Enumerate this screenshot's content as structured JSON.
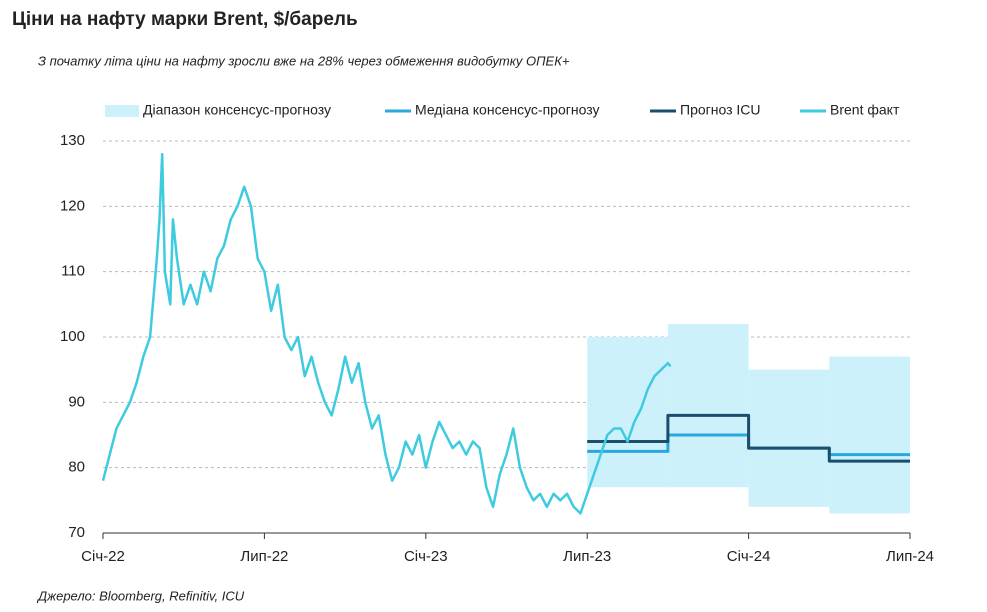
{
  "chart_data": {
    "type": "line",
    "title": "Ціни на нафту марки Brent, $/барель",
    "subtitle": "З початку літа ціни на нафту зросли вже на 28% через обмеження видобутку ОПЕК+",
    "source": "Джерело: Bloomberg, Refinitiv, ICU",
    "xlim": [
      0,
      30
    ],
    "xticks": [
      {
        "value": 0,
        "label": "Січ-22"
      },
      {
        "value": 6,
        "label": "Лип-22"
      },
      {
        "value": 12,
        "label": "Січ-23"
      },
      {
        "value": 18,
        "label": "Лип-23"
      },
      {
        "value": 24,
        "label": "Січ-24"
      },
      {
        "value": 30,
        "label": "Лип-24"
      }
    ],
    "ylim": [
      70,
      130
    ],
    "yticks": [
      70,
      80,
      90,
      100,
      110,
      120,
      130
    ],
    "grid": true,
    "legend": "top",
    "series": [
      {
        "name": "Діапазон консенсус-прогнозу",
        "kind": "range",
        "color": "#cdf1fb",
        "x": [
          18,
          21,
          21,
          24,
          24,
          27,
          27,
          30
        ],
        "values": [
          100,
          100,
          102,
          102,
          95,
          95,
          97,
          97
        ],
        "lower": [
          77,
          77,
          77,
          77,
          74,
          74,
          73,
          73
        ]
      },
      {
        "name": "Медіана консенсус-прогнозу",
        "color": "#29a8e0",
        "x": [
          18,
          21,
          21,
          24,
          24,
          27,
          27,
          30
        ],
        "values": [
          82.5,
          82.5,
          85,
          85,
          83,
          83,
          82,
          82
        ]
      },
      {
        "name": "Прогноз ICU",
        "color": "#1a4e6e",
        "x": [
          18,
          21,
          21,
          24,
          24,
          27,
          27,
          30
        ],
        "values": [
          84,
          84,
          88,
          88,
          83,
          83,
          81,
          81
        ]
      },
      {
        "name": "Brent факт",
        "color": "#3ecbe0",
        "x": [
          0,
          0.25,
          0.5,
          0.75,
          1,
          1.25,
          1.5,
          1.75,
          2,
          2.1,
          2.2,
          2.3,
          2.5,
          2.6,
          2.75,
          3,
          3.25,
          3.5,
          3.75,
          4,
          4.25,
          4.5,
          4.75,
          5,
          5.25,
          5.5,
          5.75,
          6,
          6.25,
          6.5,
          6.75,
          7,
          7.25,
          7.5,
          7.75,
          8,
          8.25,
          8.5,
          8.75,
          9,
          9.25,
          9.5,
          9.75,
          10,
          10.25,
          10.5,
          10.75,
          11,
          11.25,
          11.5,
          11.75,
          12,
          12.25,
          12.5,
          12.75,
          13,
          13.25,
          13.5,
          13.75,
          14,
          14.25,
          14.5,
          14.75,
          15,
          15.25,
          15.5,
          15.75,
          16,
          16.25,
          16.5,
          16.75,
          17,
          17.25,
          17.5,
          17.75,
          18,
          18.25,
          18.5,
          18.75,
          19,
          19.25,
          19.5,
          19.75,
          20,
          20.25,
          20.5,
          20.75,
          21,
          21.1
        ],
        "values": [
          78,
          82,
          86,
          88,
          90,
          93,
          97,
          100,
          112,
          118,
          128,
          110,
          105,
          118,
          112,
          105,
          108,
          105,
          110,
          107,
          112,
          114,
          118,
          120,
          123,
          120,
          112,
          110,
          104,
          108,
          100,
          98,
          100,
          94,
          97,
          93,
          90,
          88,
          92,
          97,
          93,
          96,
          90,
          86,
          88,
          82,
          78,
          80,
          84,
          82,
          85,
          80,
          84,
          87,
          85,
          83,
          84,
          82,
          84,
          83,
          77,
          74,
          79,
          82,
          86,
          80,
          77,
          75,
          76,
          74,
          76,
          75,
          76,
          74,
          73,
          76,
          79,
          82,
          85,
          86,
          86,
          84,
          87,
          89,
          92,
          94,
          95,
          96,
          95.5
        ]
      }
    ]
  }
}
